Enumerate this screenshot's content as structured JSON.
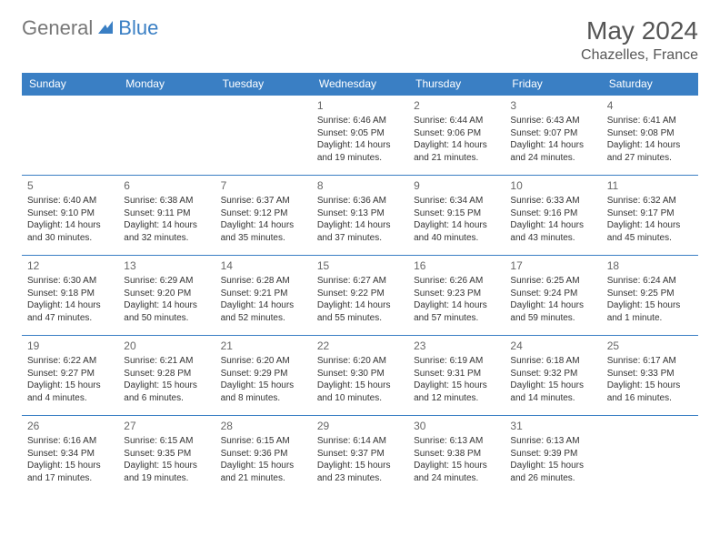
{
  "header": {
    "logo1": "General",
    "logo2": "Blue",
    "month": "May 2024",
    "location": "Chazelles, France"
  },
  "style": {
    "accent": "#3a7fc4",
    "header_text": "#ffffff",
    "body_text": "#333333",
    "daynum_color": "#666666",
    "th_fontsize": 12,
    "cell_fontsize": 10,
    "title_fontsize": 28,
    "location_fontsize": 16
  },
  "weekdays": [
    "Sunday",
    "Monday",
    "Tuesday",
    "Wednesday",
    "Thursday",
    "Friday",
    "Saturday"
  ],
  "weeks": [
    [
      null,
      null,
      null,
      {
        "n": "1",
        "sr": "6:46 AM",
        "ss": "9:05 PM",
        "dl": "14 hours and 19 minutes."
      },
      {
        "n": "2",
        "sr": "6:44 AM",
        "ss": "9:06 PM",
        "dl": "14 hours and 21 minutes."
      },
      {
        "n": "3",
        "sr": "6:43 AM",
        "ss": "9:07 PM",
        "dl": "14 hours and 24 minutes."
      },
      {
        "n": "4",
        "sr": "6:41 AM",
        "ss": "9:08 PM",
        "dl": "14 hours and 27 minutes."
      }
    ],
    [
      {
        "n": "5",
        "sr": "6:40 AM",
        "ss": "9:10 PM",
        "dl": "14 hours and 30 minutes."
      },
      {
        "n": "6",
        "sr": "6:38 AM",
        "ss": "9:11 PM",
        "dl": "14 hours and 32 minutes."
      },
      {
        "n": "7",
        "sr": "6:37 AM",
        "ss": "9:12 PM",
        "dl": "14 hours and 35 minutes."
      },
      {
        "n": "8",
        "sr": "6:36 AM",
        "ss": "9:13 PM",
        "dl": "14 hours and 37 minutes."
      },
      {
        "n": "9",
        "sr": "6:34 AM",
        "ss": "9:15 PM",
        "dl": "14 hours and 40 minutes."
      },
      {
        "n": "10",
        "sr": "6:33 AM",
        "ss": "9:16 PM",
        "dl": "14 hours and 43 minutes."
      },
      {
        "n": "11",
        "sr": "6:32 AM",
        "ss": "9:17 PM",
        "dl": "14 hours and 45 minutes."
      }
    ],
    [
      {
        "n": "12",
        "sr": "6:30 AM",
        "ss": "9:18 PM",
        "dl": "14 hours and 47 minutes."
      },
      {
        "n": "13",
        "sr": "6:29 AM",
        "ss": "9:20 PM",
        "dl": "14 hours and 50 minutes."
      },
      {
        "n": "14",
        "sr": "6:28 AM",
        "ss": "9:21 PM",
        "dl": "14 hours and 52 minutes."
      },
      {
        "n": "15",
        "sr": "6:27 AM",
        "ss": "9:22 PM",
        "dl": "14 hours and 55 minutes."
      },
      {
        "n": "16",
        "sr": "6:26 AM",
        "ss": "9:23 PM",
        "dl": "14 hours and 57 minutes."
      },
      {
        "n": "17",
        "sr": "6:25 AM",
        "ss": "9:24 PM",
        "dl": "14 hours and 59 minutes."
      },
      {
        "n": "18",
        "sr": "6:24 AM",
        "ss": "9:25 PM",
        "dl": "15 hours and 1 minute."
      }
    ],
    [
      {
        "n": "19",
        "sr": "6:22 AM",
        "ss": "9:27 PM",
        "dl": "15 hours and 4 minutes."
      },
      {
        "n": "20",
        "sr": "6:21 AM",
        "ss": "9:28 PM",
        "dl": "15 hours and 6 minutes."
      },
      {
        "n": "21",
        "sr": "6:20 AM",
        "ss": "9:29 PM",
        "dl": "15 hours and 8 minutes."
      },
      {
        "n": "22",
        "sr": "6:20 AM",
        "ss": "9:30 PM",
        "dl": "15 hours and 10 minutes."
      },
      {
        "n": "23",
        "sr": "6:19 AM",
        "ss": "9:31 PM",
        "dl": "15 hours and 12 minutes."
      },
      {
        "n": "24",
        "sr": "6:18 AM",
        "ss": "9:32 PM",
        "dl": "15 hours and 14 minutes."
      },
      {
        "n": "25",
        "sr": "6:17 AM",
        "ss": "9:33 PM",
        "dl": "15 hours and 16 minutes."
      }
    ],
    [
      {
        "n": "26",
        "sr": "6:16 AM",
        "ss": "9:34 PM",
        "dl": "15 hours and 17 minutes."
      },
      {
        "n": "27",
        "sr": "6:15 AM",
        "ss": "9:35 PM",
        "dl": "15 hours and 19 minutes."
      },
      {
        "n": "28",
        "sr": "6:15 AM",
        "ss": "9:36 PM",
        "dl": "15 hours and 21 minutes."
      },
      {
        "n": "29",
        "sr": "6:14 AM",
        "ss": "9:37 PM",
        "dl": "15 hours and 23 minutes."
      },
      {
        "n": "30",
        "sr": "6:13 AM",
        "ss": "9:38 PM",
        "dl": "15 hours and 24 minutes."
      },
      {
        "n": "31",
        "sr": "6:13 AM",
        "ss": "9:39 PM",
        "dl": "15 hours and 26 minutes."
      },
      null
    ]
  ],
  "labels": {
    "sunrise": "Sunrise:",
    "sunset": "Sunset:",
    "daylight": "Daylight:"
  }
}
